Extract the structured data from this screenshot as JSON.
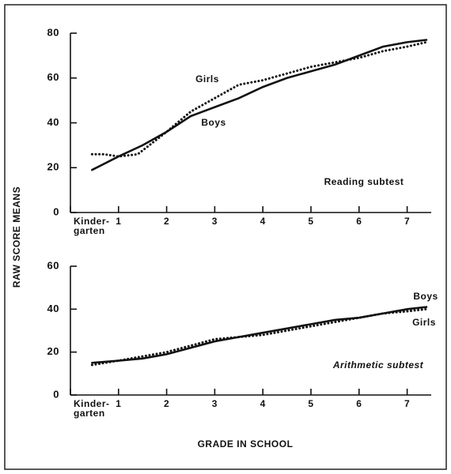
{
  "ylabel": "RAW SCORE MEANS",
  "xlabel": "GRADE IN SCHOOL",
  "chart_data": [
    {
      "type": "line",
      "annotation": "Reading subtest",
      "xlim": [
        0,
        7.5
      ],
      "xticks": [
        {
          "value": 0,
          "label": "Kinder-\ngarten"
        },
        1,
        2,
        3,
        4,
        5,
        6,
        7
      ],
      "ylim": [
        0,
        80
      ],
      "yticks": [
        0,
        20,
        40,
        60,
        80
      ],
      "series": [
        {
          "name": "Boys",
          "color": "#111",
          "style": "solid",
          "x": [
            0.45,
            1,
            1.5,
            2,
            2.5,
            3,
            3.5,
            4,
            4.5,
            5,
            5.5,
            6,
            6.5,
            7,
            7.4
          ],
          "values": [
            19,
            25,
            30,
            36,
            43,
            47,
            51,
            56,
            60,
            63,
            66,
            70,
            74,
            76,
            77
          ]
        },
        {
          "name": "Girls",
          "color": "#111",
          "style": "dotted",
          "x": [
            0.45,
            0.7,
            1,
            1.4,
            2,
            2.5,
            3,
            3.5,
            4,
            4.5,
            5,
            5.5,
            6,
            6.5,
            7,
            7.4
          ],
          "values": [
            26,
            26,
            25,
            26,
            36,
            45,
            51,
            57,
            59,
            62,
            65,
            67,
            69,
            72,
            74,
            76
          ]
        }
      ]
    },
    {
      "type": "line",
      "annotation": "Arithmetic subtest",
      "xlim": [
        0,
        7.5
      ],
      "xticks": [
        {
          "value": 0,
          "label": "Kinder-\ngarten"
        },
        1,
        2,
        3,
        4,
        5,
        6,
        7
      ],
      "ylim": [
        0,
        60
      ],
      "yticks": [
        0,
        20,
        40,
        60
      ],
      "series": [
        {
          "name": "Boys",
          "color": "#111",
          "style": "solid",
          "x": [
            0.45,
            1,
            1.5,
            2,
            2.5,
            3,
            3.5,
            4,
            4.5,
            5,
            5.5,
            6,
            6.5,
            7,
            7.4
          ],
          "values": [
            15,
            16,
            17,
            19,
            22,
            25,
            27,
            29,
            31,
            33,
            35,
            36,
            38,
            40,
            41
          ]
        },
        {
          "name": "Girls",
          "color": "#111",
          "style": "dotted",
          "x": [
            0.45,
            1,
            1.5,
            2,
            2.5,
            3,
            3.5,
            4,
            4.5,
            5,
            5.5,
            6,
            6.5,
            7,
            7.4
          ],
          "values": [
            14,
            16,
            18,
            20,
            23,
            26,
            27,
            28,
            30,
            32,
            34,
            36,
            38,
            39,
            40
          ]
        }
      ]
    }
  ]
}
